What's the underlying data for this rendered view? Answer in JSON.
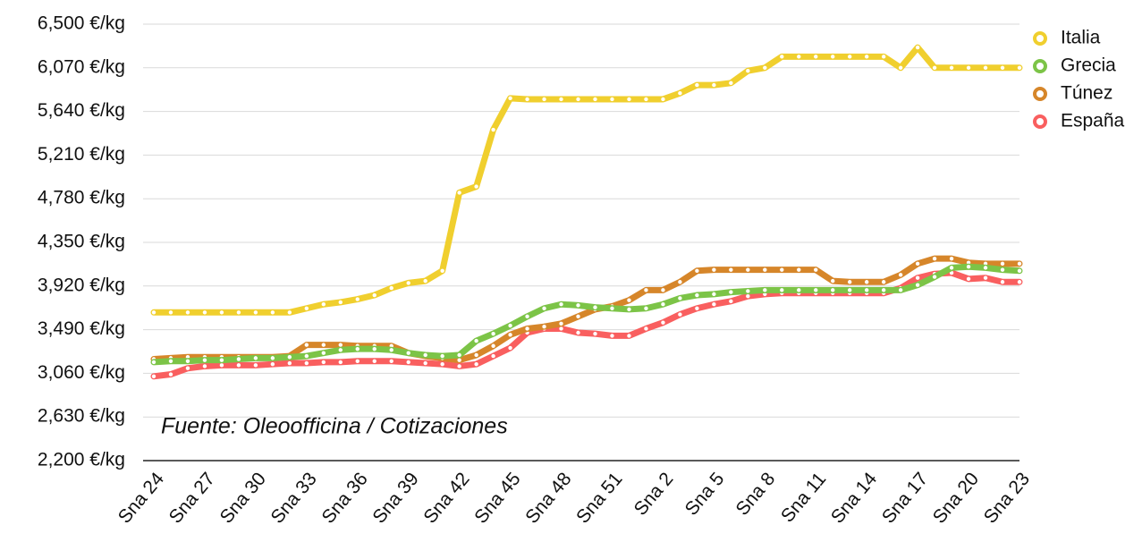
{
  "chart_data": {
    "type": "line",
    "annotation": "Fuente: Oleoofficina / Cotizaciones",
    "categories": [
      "Sna 24",
      null,
      null,
      "Sna 27",
      null,
      null,
      "Sna 30",
      null,
      null,
      "Sna 33",
      null,
      null,
      "Sna 36",
      null,
      null,
      "Sna 39",
      null,
      null,
      "Sna 42",
      null,
      null,
      "Sna 45",
      null,
      null,
      "Sna 48",
      null,
      null,
      "Sna 51",
      null,
      null,
      "Sna 2",
      null,
      null,
      "Sna 5",
      null,
      null,
      "Sna 8",
      null,
      null,
      "Sna 11",
      null,
      null,
      "Sna 14",
      null,
      null,
      "Sna 17",
      null,
      null,
      "Sna 20",
      null,
      null,
      "Sna 23"
    ],
    "series": [
      {
        "name": "Italia",
        "color": "#f0cf2e",
        "values": [
          3660,
          3660,
          3660,
          3660,
          3660,
          3660,
          3660,
          3660,
          3660,
          3700,
          3740,
          3760,
          3790,
          3830,
          3900,
          3950,
          3970,
          4070,
          4840,
          4900,
          5460,
          5770,
          5760,
          5760,
          5760,
          5760,
          5760,
          5760,
          5760,
          5760,
          5760,
          5820,
          5900,
          5900,
          5920,
          6040,
          6070,
          6180,
          6180,
          6180,
          6180,
          6180,
          6180,
          6180,
          6070,
          6270,
          6070,
          6070,
          6070,
          6070,
          6070,
          6070
        ]
      },
      {
        "name": "Grecia",
        "color": "#7cc447",
        "values": [
          3170,
          3180,
          3180,
          3190,
          3190,
          3200,
          3210,
          3210,
          3220,
          3230,
          3260,
          3290,
          3300,
          3300,
          3290,
          3260,
          3240,
          3230,
          3240,
          3380,
          3450,
          3530,
          3620,
          3700,
          3740,
          3730,
          3710,
          3700,
          3690,
          3700,
          3740,
          3800,
          3830,
          3840,
          3860,
          3870,
          3880,
          3880,
          3880,
          3880,
          3880,
          3880,
          3880,
          3880,
          3880,
          3930,
          4010,
          4100,
          4110,
          4100,
          4080,
          4070
        ]
      },
      {
        "name": "Túnez",
        "color": "#d6862a",
        "values": [
          3200,
          3210,
          3220,
          3220,
          3220,
          3220,
          3220,
          3220,
          3230,
          3340,
          3340,
          3340,
          3330,
          3330,
          3330,
          3260,
          3230,
          3210,
          3190,
          3240,
          3330,
          3440,
          3500,
          3520,
          3550,
          3620,
          3690,
          3720,
          3780,
          3880,
          3880,
          3960,
          4070,
          4080,
          4080,
          4080,
          4080,
          4080,
          4080,
          4080,
          3970,
          3960,
          3960,
          3960,
          4030,
          4140,
          4190,
          4190,
          4150,
          4140,
          4140,
          4140
        ]
      },
      {
        "name": "España",
        "color": "#f95f5f",
        "values": [
          3030,
          3050,
          3110,
          3130,
          3140,
          3140,
          3140,
          3150,
          3160,
          3160,
          3170,
          3170,
          3180,
          3180,
          3180,
          3170,
          3160,
          3150,
          3130,
          3150,
          3230,
          3310,
          3460,
          3500,
          3500,
          3460,
          3450,
          3430,
          3430,
          3500,
          3560,
          3640,
          3700,
          3740,
          3770,
          3820,
          3840,
          3850,
          3850,
          3850,
          3850,
          3850,
          3850,
          3850,
          3900,
          4000,
          4040,
          4050,
          3990,
          4000,
          3960,
          3960
        ]
      }
    ],
    "ylim": [
      2200,
      6500
    ],
    "yticks": [
      {
        "value": 2200,
        "label": "2,200 €/kg"
      },
      {
        "value": 2630,
        "label": "2,630 €/kg"
      },
      {
        "value": 3060,
        "label": "3,060 €/kg"
      },
      {
        "value": 3490,
        "label": "3,490 €/kg"
      },
      {
        "value": 3920,
        "label": "3,920 €/kg"
      },
      {
        "value": 4350,
        "label": "4,350 €/kg"
      },
      {
        "value": 4780,
        "label": "4,780 €/kg"
      },
      {
        "value": 5210,
        "label": "5,210 €/kg"
      },
      {
        "value": 5640,
        "label": "5,640 €/kg"
      },
      {
        "value": 6070,
        "label": "6,070 €/kg"
      },
      {
        "value": 6500,
        "label": "6,500 €/kg"
      }
    ],
    "grid": true,
    "legend": "top-right"
  }
}
